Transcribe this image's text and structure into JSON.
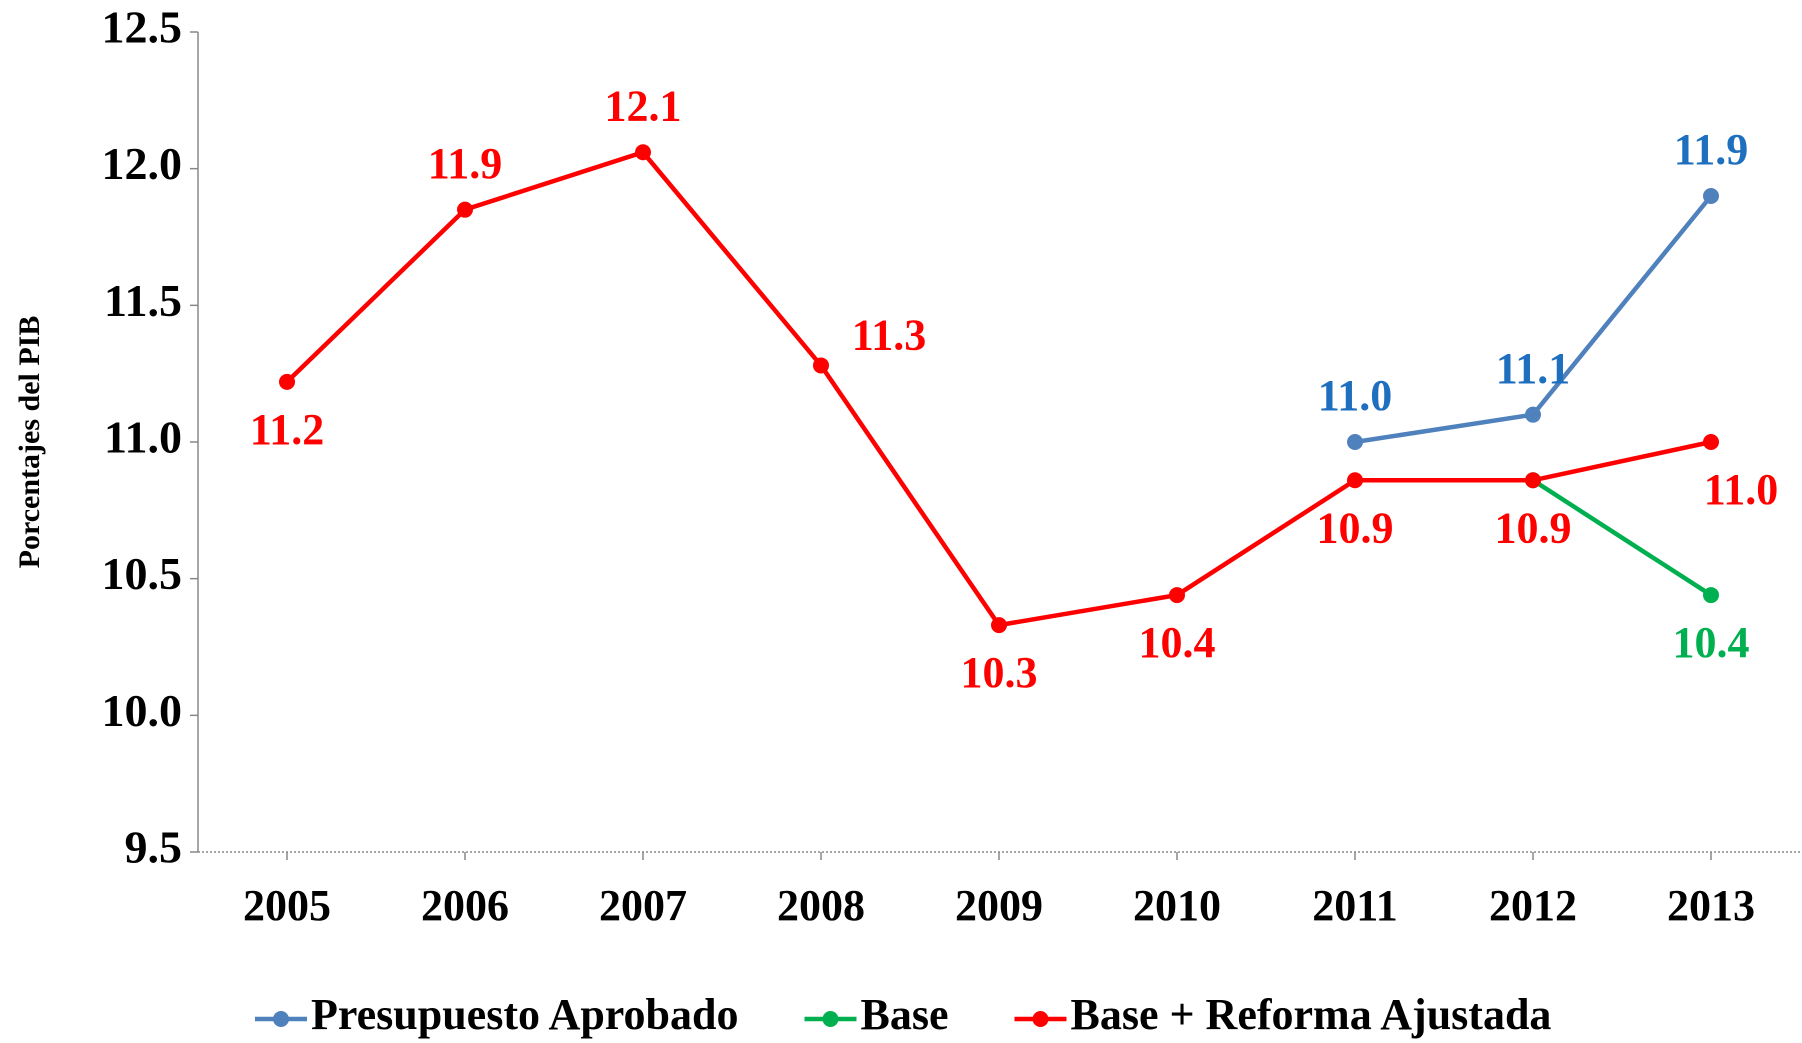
{
  "chart_data": {
    "type": "line",
    "y_label": "Porcentajes del PIB",
    "categories": [
      "2005",
      "2006",
      "2007",
      "2008",
      "2009",
      "2010",
      "2011",
      "2012",
      "2013"
    ],
    "series": [
      {
        "name": "Presupuesto Aprobado",
        "color": "#4f81bd",
        "label_color": "#1f6fbf",
        "values": [
          null,
          null,
          null,
          null,
          null,
          null,
          11.0,
          11.1,
          11.9
        ],
        "value_labels": [
          null,
          null,
          null,
          null,
          null,
          null,
          "11.0",
          "11.1",
          "11.9"
        ]
      },
      {
        "name": "Base",
        "color": "#00b050",
        "label_color": "#00b050",
        "values": [
          null,
          null,
          null,
          null,
          null,
          null,
          null,
          10.86,
          10.44
        ],
        "value_labels": [
          null,
          null,
          null,
          null,
          null,
          null,
          null,
          null,
          "10.4"
        ]
      },
      {
        "name": "Base + Reforma Ajustada",
        "color": "#ff0000",
        "label_color": "#ff0000",
        "values": [
          11.22,
          11.85,
          12.06,
          11.28,
          10.33,
          10.44,
          10.86,
          10.86,
          11.0
        ],
        "value_labels": [
          "11.2",
          "11.9",
          "12.1",
          "11.3",
          "10.3",
          "10.4",
          "10.9",
          "10.9",
          "11.0"
        ]
      }
    ],
    "ylim": [
      9.5,
      12.5
    ],
    "yticks": [
      {
        "value": 9.5,
        "label": "9.5"
      },
      {
        "value": 10,
        "label": "10.0"
      },
      {
        "value": 10.5,
        "label": "10.5"
      },
      {
        "value": 11,
        "label": "11.0"
      },
      {
        "value": 11.5,
        "label": "11.5"
      },
      {
        "value": 12,
        "label": "12.0"
      },
      {
        "value": 12.5,
        "label": "12.5"
      }
    ],
    "legend": "bottom",
    "grid": false
  }
}
